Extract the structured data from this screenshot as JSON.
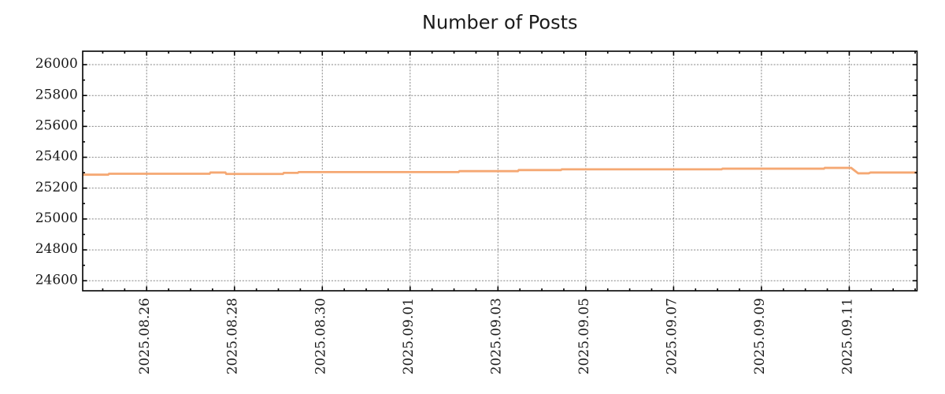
{
  "title": "Number of Posts",
  "colors": {
    "background": "#ffffff",
    "line": "#f5a873",
    "grid": "#878787",
    "border": "#000000",
    "tick": "#000000",
    "text": "#1a1a1a"
  },
  "chart_data": {
    "type": "line",
    "title": "Number of Posts",
    "xlabel": "",
    "ylabel": "",
    "legend": "none",
    "grid": "dotted gray lines at major ticks; closed box frame with mirrored inward tick marks on all four sides",
    "x_axis": {
      "kind": "datetime",
      "range_start": "2025-08-24 13:00",
      "range_end": "2025-09-12 13:00",
      "range_days": 19,
      "first_major_day_offset": 1.4565,
      "major_interval_days": 2,
      "minor_interval_days": 0.5,
      "label_rotation_deg": 90,
      "major_tick_labels": [
        "2025.08.26",
        "2025.08.28",
        "2025.08.30",
        "2025.09.01",
        "2025.09.03",
        "2025.09.05",
        "2025.09.07",
        "2025.09.09",
        "2025.09.11"
      ]
    },
    "y_axis": {
      "min": 24535,
      "max": 26087,
      "minor_interval": 100,
      "major_tick_values": [
        26000,
        25800,
        25600,
        25400,
        25200,
        25000,
        24800,
        24600
      ],
      "major_tick_labels": [
        "26000",
        "25800",
        "25600",
        "25400",
        "25200",
        "25000",
        "24800",
        "24600"
      ]
    },
    "series": [
      {
        "name": "Number of Posts",
        "color": "#f5a873",
        "points": [
          {
            "day": 0.0,
            "date": "2025-08-24 13:00",
            "value": 25287
          },
          {
            "day": 0.58,
            "date": "2025-08-25 03:00",
            "value": 25287
          },
          {
            "day": 0.6,
            "date": "2025-08-25 03:30",
            "value": 25293
          },
          {
            "day": 2.89,
            "date": "2025-08-27 10:00",
            "value": 25293
          },
          {
            "day": 2.91,
            "date": "2025-08-27 11:00",
            "value": 25301
          },
          {
            "day": 3.25,
            "date": "2025-08-27 19:00",
            "value": 25301
          },
          {
            "day": 3.27,
            "date": "2025-08-27 19:30",
            "value": 25292
          },
          {
            "day": 4.56,
            "date": "2025-08-29 02:00",
            "value": 25292
          },
          {
            "day": 4.58,
            "date": "2025-08-29 03:00",
            "value": 25299
          },
          {
            "day": 4.9,
            "date": "2025-08-29 10:30",
            "value": 25299
          },
          {
            "day": 4.92,
            "date": "2025-08-29 11:00",
            "value": 25304
          },
          {
            "day": 8.56,
            "date": "2025-09-02 02:00",
            "value": 25304
          },
          {
            "day": 8.58,
            "date": "2025-09-02 03:00",
            "value": 25310
          },
          {
            "day": 9.91,
            "date": "2025-09-03 11:00",
            "value": 25310
          },
          {
            "day": 9.93,
            "date": "2025-09-03 11:30",
            "value": 25317
          },
          {
            "day": 10.89,
            "date": "2025-09-04 10:00",
            "value": 25317
          },
          {
            "day": 10.91,
            "date": "2025-09-04 11:00",
            "value": 25322
          },
          {
            "day": 14.55,
            "date": "2025-09-08 02:00",
            "value": 25322
          },
          {
            "day": 14.57,
            "date": "2025-09-08 03:00",
            "value": 25326
          },
          {
            "day": 16.88,
            "date": "2025-09-10 10:00",
            "value": 25326
          },
          {
            "day": 16.9,
            "date": "2025-09-10 11:00",
            "value": 25331
          },
          {
            "day": 17.5,
            "date": "2025-09-11 01:00",
            "value": 25331
          },
          {
            "day": 17.66,
            "date": "2025-09-11 05:00",
            "value": 25296
          },
          {
            "day": 17.9,
            "date": "2025-09-11 10:30",
            "value": 25296
          },
          {
            "day": 17.94,
            "date": "2025-09-11 11:30",
            "value": 25301
          },
          {
            "day": 19.0,
            "date": "2025-09-12 13:00",
            "value": 25301
          }
        ]
      }
    ]
  }
}
